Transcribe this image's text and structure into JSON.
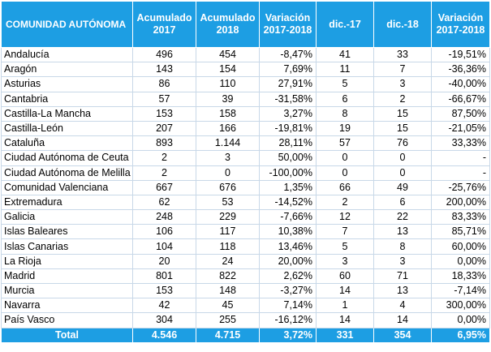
{
  "table": {
    "headers": [
      "COMUNIDAD AUTÓNOMA",
      "Acumulado 2017",
      "Acumulado 2018",
      "Variación 2017-2018",
      "dic.-17",
      "dic.-18",
      "Variación 2017-2018"
    ],
    "rows": [
      [
        "Andalucía",
        "496",
        "454",
        "-8,47%",
        "41",
        "33",
        "-19,51%"
      ],
      [
        "Aragón",
        "143",
        "154",
        "7,69%",
        "11",
        "7",
        "-36,36%"
      ],
      [
        "Asturias",
        "86",
        "110",
        "27,91%",
        "5",
        "3",
        "-40,00%"
      ],
      [
        "Cantabria",
        "57",
        "39",
        "-31,58%",
        "6",
        "2",
        "-66,67%"
      ],
      [
        "Castilla-La Mancha",
        "153",
        "158",
        "3,27%",
        "8",
        "15",
        "87,50%"
      ],
      [
        "Castilla-León",
        "207",
        "166",
        "-19,81%",
        "19",
        "15",
        "-21,05%"
      ],
      [
        "Cataluña",
        "893",
        "1.144",
        "28,11%",
        "57",
        "76",
        "33,33%"
      ],
      [
        "Ciudad Autónoma de Ceuta",
        "2",
        "3",
        "50,00%",
        "0",
        "0",
        "-"
      ],
      [
        "Ciudad Autónoma de Melilla",
        "2",
        "0",
        "-100,00%",
        "0",
        "0",
        "-"
      ],
      [
        "Comunidad Valenciana",
        "667",
        "676",
        "1,35%",
        "66",
        "49",
        "-25,76%"
      ],
      [
        "Extremadura",
        "62",
        "53",
        "-14,52%",
        "2",
        "6",
        "200,00%"
      ],
      [
        "Galicia",
        "248",
        "229",
        "-7,66%",
        "12",
        "22",
        "83,33%"
      ],
      [
        "Islas Baleares",
        "106",
        "117",
        "10,38%",
        "7",
        "13",
        "85,71%"
      ],
      [
        "Islas Canarias",
        "104",
        "118",
        "13,46%",
        "5",
        "8",
        "60,00%"
      ],
      [
        "La Rioja",
        "20",
        "24",
        "20,00%",
        "3",
        "3",
        "0,00%"
      ],
      [
        "Madrid",
        "801",
        "822",
        "2,62%",
        "60",
        "71",
        "18,33%"
      ],
      [
        "Murcia",
        "153",
        "148",
        "-3,27%",
        "14",
        "13",
        "-7,14%"
      ],
      [
        "Navarra",
        "42",
        "45",
        "7,14%",
        "1",
        "4",
        "300,00%"
      ],
      [
        "País Vasco",
        "304",
        "255",
        "-16,12%",
        "14",
        "14",
        "0,00%"
      ]
    ],
    "total": [
      "Total",
      "4.546",
      "4.715",
      "3,72%",
      "331",
      "354",
      "6,95%"
    ]
  },
  "colors": {
    "header_bg": "#1d9ee3",
    "header_text": "#ffffff",
    "grid": "#c8d8e8"
  }
}
